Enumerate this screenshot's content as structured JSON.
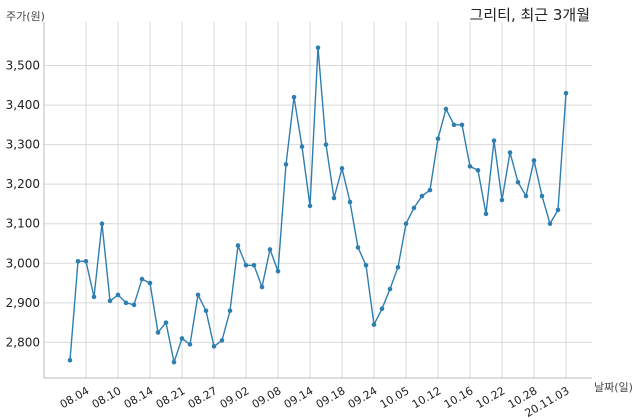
{
  "chart_data": {
    "type": "line",
    "title": "그리티, 최근 3개월",
    "ylabel": "주가(원)",
    "xlabel": "날짜(일)",
    "ylim": [
      2710,
      3610
    ],
    "yticks": [
      2800,
      2900,
      3000,
      3100,
      3200,
      3300,
      3400,
      3500
    ],
    "ytick_labels": [
      "2,800",
      "2,900",
      "3,000",
      "3,100",
      "3,200",
      "3,300",
      "3,400",
      "3,500"
    ],
    "grid": true,
    "xtick_labels": [
      {
        "index": 2,
        "label": "08.04"
      },
      {
        "index": 6,
        "label": "08.10"
      },
      {
        "index": 10,
        "label": "08.14"
      },
      {
        "index": 14,
        "label": "08.21"
      },
      {
        "index": 18,
        "label": "08.27"
      },
      {
        "index": 22,
        "label": "09.02"
      },
      {
        "index": 26,
        "label": "09.08"
      },
      {
        "index": 30,
        "label": "09.14"
      },
      {
        "index": 34,
        "label": "09.18"
      },
      {
        "index": 38,
        "label": "09.24"
      },
      {
        "index": 42,
        "label": "10.05"
      },
      {
        "index": 46,
        "label": "10.12"
      },
      {
        "index": 50,
        "label": "10.16"
      },
      {
        "index": 54,
        "label": "10.22"
      },
      {
        "index": 58,
        "label": "10.28"
      },
      {
        "index": 62,
        "label": "20.11.03"
      }
    ],
    "series": [
      {
        "values": [
          2755,
          3005,
          3005,
          2915,
          3100,
          2905,
          2920,
          2900,
          2895,
          2960,
          2950,
          2825,
          2850,
          2750,
          2810,
          2795,
          2920,
          2880,
          2790,
          2805,
          2880,
          3045,
          2995,
          2995,
          2940,
          3035,
          2980,
          3250,
          3420,
          3295,
          3145,
          3545,
          3300,
          3165,
          3240,
          3155,
          3040,
          2995,
          2845,
          2885,
          2935,
          2990,
          3100,
          3140,
          3170,
          3185,
          3315,
          3390,
          3350,
          3350,
          3245,
          3235,
          3125,
          3310,
          3160,
          3280,
          3205,
          3170,
          3260,
          3170,
          3100,
          3135,
          3430
        ]
      }
    ]
  }
}
